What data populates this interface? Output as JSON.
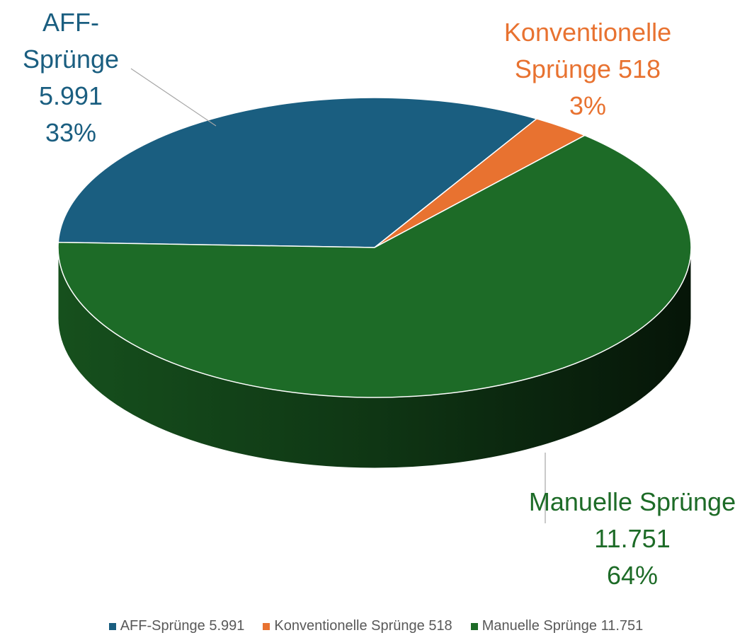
{
  "chart_data": {
    "type": "pie3d",
    "categories": [
      "AFF-Sprünge 5.991",
      "Konventionelle Sprünge 518",
      "Manuelle Sprünge 11.751"
    ],
    "values": [
      33,
      3,
      64
    ],
    "value_labels": [
      "33%",
      "3%",
      "64%"
    ],
    "colors": [
      "#1a5e80",
      "#e87230",
      "#1d6b27"
    ],
    "legend": "bottom"
  }
}
